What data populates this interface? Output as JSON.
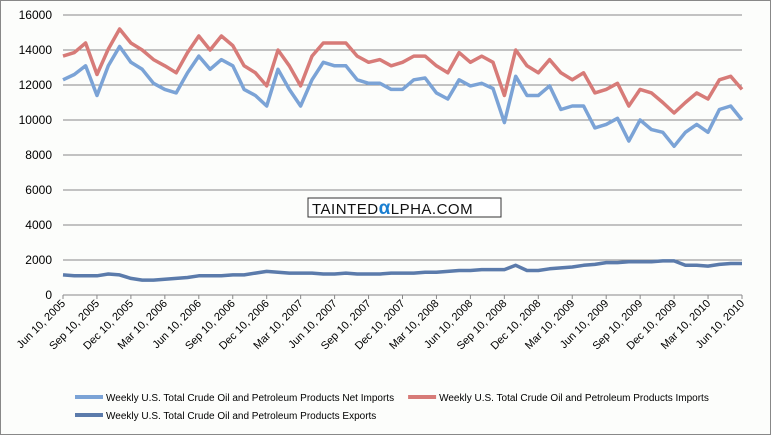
{
  "chart_data": {
    "type": "line",
    "title": "",
    "xlabel": "",
    "ylabel": "",
    "ylim": [
      0,
      16000
    ],
    "yticks": [
      "0",
      "2000",
      "4000",
      "6000",
      "8000",
      "10000",
      "12000",
      "14000",
      "16000"
    ],
    "grid": true,
    "legend_position": "bottom",
    "x_tick_labels": [
      "Jun 10, 2005",
      "Sep 10, 2005",
      "Dec 10, 2005",
      "Mar 10, 2006",
      "Jun 10, 2006",
      "Sep 10, 2006",
      "Dec 10, 2006",
      "Mar 10, 2007",
      "Jun 10, 2007",
      "Sep 10, 2007",
      "Dec 10, 2007",
      "Mar 10, 2008",
      "Jun 10, 2008",
      "Sep 10, 2008",
      "Dec 10, 2008",
      "Mar 10, 2009",
      "Jun 10, 2009",
      "Sep 10, 2009",
      "Dec 10, 2009",
      "Mar 10, 2010",
      "Jun 10, 2010"
    ],
    "x_note": "monthly samples from Jun 2005 to Jun 2010 (61 points)",
    "series": [
      {
        "name": "Weekly U.S. Total Crude Oil and Petroleum Products Net Imports",
        "color": "#7ba3d6",
        "values": [
          12300,
          12600,
          13100,
          11400,
          13100,
          14200,
          13300,
          12900,
          12100,
          11750,
          11550,
          12700,
          13650,
          12900,
          13450,
          13100,
          11750,
          11400,
          10800,
          12900,
          11750,
          10800,
          12300,
          13300,
          13100,
          13100,
          12300,
          12100,
          12100,
          11750,
          11750,
          12300,
          12400,
          11550,
          11200,
          12300,
          11950,
          12100,
          11800,
          9850,
          12500,
          11400,
          11400,
          11950,
          10600,
          10800,
          10800,
          9550,
          9750,
          10100,
          8800,
          10000,
          9450,
          9300,
          8500,
          9300,
          9750,
          9300,
          10600,
          10800,
          10000
        ]
      },
      {
        "name": "Weekly U.S. Total Crude Oil and Petroleum Products Imports",
        "color": "#d77b78",
        "values": [
          13650,
          13850,
          14400,
          12600,
          14050,
          15200,
          14400,
          14000,
          13450,
          13100,
          12700,
          13850,
          14800,
          14000,
          14800,
          14250,
          13100,
          12700,
          11950,
          14000,
          13100,
          11950,
          13650,
          14400,
          14400,
          14400,
          13650,
          13300,
          13450,
          13100,
          13300,
          13650,
          13650,
          13100,
          12700,
          13850,
          13300,
          13650,
          13300,
          11400,
          14000,
          13100,
          12700,
          13450,
          12700,
          12300,
          12700,
          11550,
          11750,
          12100,
          10800,
          11750,
          11550,
          11000,
          10400,
          11000,
          11550,
          11200,
          12300,
          12500,
          11750
        ]
      },
      {
        "name": "Weekly U.S. Total Crude Oil and Petroleum Products Exports",
        "color": "#5b7bab",
        "values": [
          1150,
          1100,
          1100,
          1100,
          1200,
          1150,
          950,
          850,
          850,
          900,
          950,
          1000,
          1100,
          1100,
          1100,
          1150,
          1150,
          1250,
          1350,
          1300,
          1250,
          1250,
          1250,
          1200,
          1200,
          1250,
          1200,
          1200,
          1200,
          1250,
          1250,
          1250,
          1300,
          1300,
          1350,
          1400,
          1400,
          1450,
          1450,
          1450,
          1700,
          1400,
          1400,
          1500,
          1550,
          1600,
          1700,
          1750,
          1850,
          1850,
          1900,
          1900,
          1900,
          1950,
          1950,
          1700,
          1700,
          1650,
          1750,
          1800,
          1800
        ]
      }
    ]
  },
  "watermark": {
    "prefix": "TAINTED",
    "alpha": "α",
    "suffix": "LPHA.COM"
  }
}
